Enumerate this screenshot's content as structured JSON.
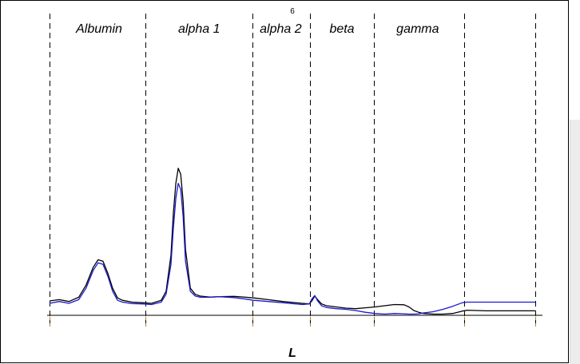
{
  "page_number": "6",
  "chart_data": {
    "type": "line",
    "title": "",
    "xlabel": "L",
    "ylabel": "",
    "xlim": [
      0,
      100
    ],
    "ylim": [
      0,
      100
    ],
    "grid": false,
    "legend": "none",
    "band_boundaries": [
      0,
      19.8,
      41.7,
      53.6,
      66.8,
      85.3,
      100
    ],
    "bands": [
      {
        "label": "Albumin",
        "center": 10.2
      },
      {
        "label": "alpha 1",
        "center": 30.8
      },
      {
        "label": "alpha 2",
        "center": 47.6
      },
      {
        "label": "beta",
        "center": 60.2
      },
      {
        "label": "gamma",
        "center": 75.8
      }
    ],
    "series": [
      {
        "color": "#000000",
        "x": [
          0,
          2,
          4,
          6,
          7.5,
          9,
          10,
          11,
          12,
          13,
          14,
          15,
          17,
          19,
          21,
          23,
          24,
          25,
          25.5,
          26,
          26.5,
          27,
          27.5,
          28,
          29,
          30,
          31,
          33,
          35,
          38,
          40,
          42,
          45,
          48,
          52,
          53.5,
          54,
          54.6,
          55.2,
          56,
          57,
          59,
          61,
          63,
          65,
          67,
          69,
          71,
          73,
          74,
          75,
          76,
          77,
          79,
          81,
          83,
          85,
          86,
          88,
          90,
          92,
          95,
          100
        ],
        "y": [
          4.8,
          5.2,
          4.6,
          6,
          10,
          16,
          18.5,
          18,
          14,
          9,
          5.8,
          5,
          4.4,
          4.2,
          4,
          5,
          8,
          20,
          34,
          44,
          49,
          47,
          38,
          22,
          9,
          7,
          6.4,
          6.1,
          6.2,
          6.3,
          6.1,
          5.8,
          5.2,
          4.6,
          4,
          3.8,
          4.8,
          6.4,
          5.2,
          3.8,
          3.2,
          2.8,
          2.4,
          2.2,
          2.5,
          2.8,
          3.2,
          3.6,
          3.5,
          2.8,
          1.6,
          1,
          0.6,
          0.4,
          0.4,
          0.6,
          1.4,
          1.7,
          1.6,
          1.5,
          1.5,
          1.5,
          1.5
        ]
      },
      {
        "color": "#1a1acc",
        "x": [
          0,
          2,
          4,
          6,
          7.5,
          9,
          10,
          11,
          12,
          13,
          14,
          15,
          17,
          19,
          21,
          23,
          24,
          25,
          25.5,
          26,
          26.5,
          27,
          27.5,
          28,
          29,
          30,
          31,
          33,
          35,
          38,
          40,
          42,
          45,
          48,
          52,
          53.5,
          54,
          54.6,
          55.2,
          56,
          57,
          59,
          61,
          63,
          65,
          67,
          69,
          71,
          73,
          74,
          75,
          76,
          77,
          79,
          81,
          83,
          85,
          86,
          88,
          90,
          92,
          95,
          100
        ],
        "y": [
          4,
          4.6,
          4,
          5.2,
          9,
          15,
          17.5,
          17,
          13,
          8,
          5,
          4.4,
          3.9,
          3.8,
          3.6,
          4.4,
          7,
          17,
          29,
          39,
          44,
          42,
          33,
          18,
          8,
          6.4,
          6,
          6,
          6.2,
          5.9,
          5.5,
          5,
          4.6,
          4.2,
          3.6,
          3.8,
          5.4,
          6.6,
          4.8,
          3.2,
          2.6,
          2.2,
          2,
          1.6,
          1,
          0.6,
          0.4,
          0.6,
          0.5,
          0.4,
          0.4,
          0.5,
          0.8,
          1.2,
          2,
          3,
          4.2,
          4.4,
          4.4,
          4.4,
          4.4,
          4.4,
          4.4
        ]
      }
    ]
  }
}
